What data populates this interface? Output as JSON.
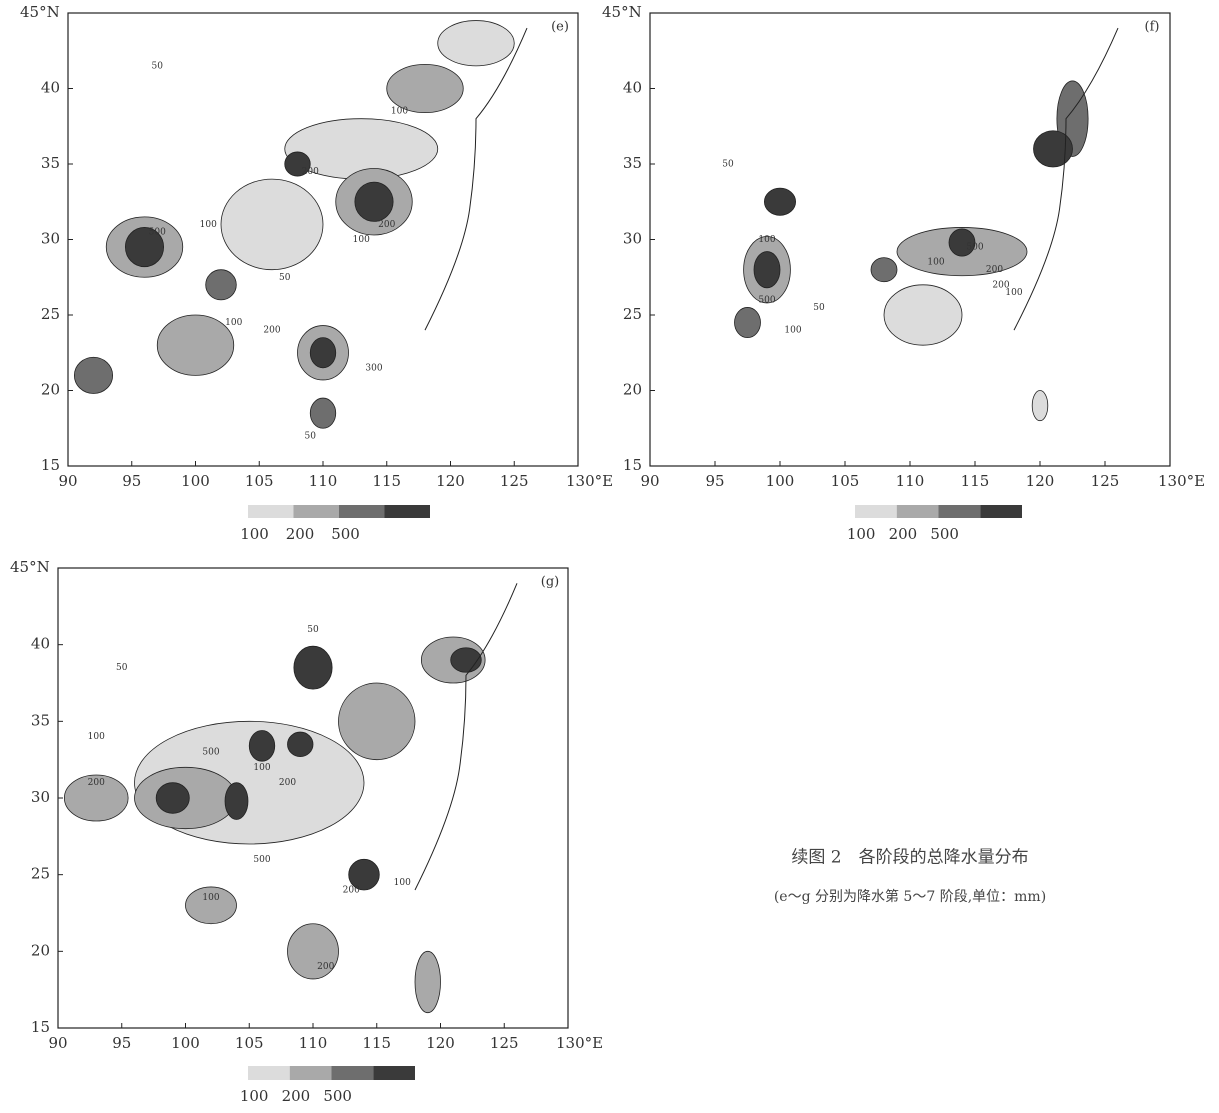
{
  "panels": [
    {
      "label": "(e)",
      "xticks": [
        90,
        95,
        100,
        105,
        110,
        115,
        120,
        125,
        {
          "value": 130,
          "label": "130°E"
        }
      ],
      "yticks": [
        15,
        20,
        25,
        30,
        35,
        40,
        {
          "value": 45,
          "label": "45°N"
        }
      ],
      "contour_labels": [
        "50",
        "100",
        "200",
        "500",
        "100",
        "200",
        "50",
        "100",
        "300",
        "50",
        "200",
        "100"
      ],
      "legend": [
        "100",
        "200",
        "500"
      ]
    },
    {
      "label": "(f)",
      "xticks": [
        90,
        95,
        100,
        105,
        110,
        115,
        120,
        125,
        {
          "value": 130,
          "label": "130°E"
        }
      ],
      "yticks": [
        15,
        20,
        25,
        30,
        35,
        40,
        {
          "value": 45,
          "label": "45°N"
        }
      ],
      "contour_labels": [
        "50",
        "100",
        "500",
        "100",
        "200",
        "50",
        "100",
        "500",
        "200",
        "100"
      ],
      "legend": [
        "100",
        "200",
        "500"
      ]
    },
    {
      "label": "(g)",
      "xticks": [
        90,
        95,
        100,
        105,
        110,
        115,
        120,
        125,
        {
          "value": 130,
          "label": "130°E"
        }
      ],
      "yticks": [
        15,
        20,
        25,
        30,
        35,
        40,
        {
          "value": 45,
          "label": "45°N"
        }
      ],
      "contour_labels": [
        "50",
        "100",
        "200",
        "500",
        "100",
        "200",
        "500",
        "100",
        "200",
        "50",
        "100",
        "200"
      ],
      "legend": [
        "100",
        "200",
        "500"
      ]
    }
  ],
  "caption": {
    "title": "续图 2　各阶段的总降水量分布",
    "note": "(e～g 分别为降水第 5～7 阶段,单位：mm)"
  }
}
